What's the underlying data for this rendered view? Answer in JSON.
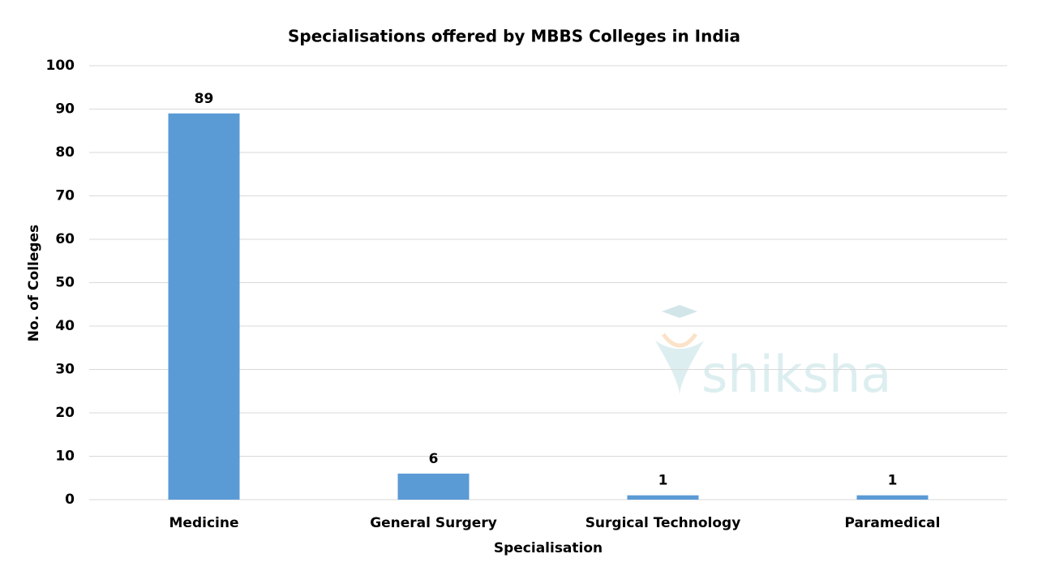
{
  "chart_data": {
    "type": "bar",
    "title": "Specialisations offered by MBBS Colleges in India",
    "x_label": "Specialisation",
    "y_label": "No. of Colleges",
    "categories": [
      "Medicine",
      "General Surgery",
      "Surgical Technology",
      "Paramedical"
    ],
    "values": [
      89,
      6,
      1,
      1
    ],
    "color": "#5b9bd5",
    "ylim": [
      0,
      100
    ],
    "yticks": [
      0,
      10,
      20,
      30,
      40,
      50,
      60,
      70,
      80,
      90,
      100
    ],
    "grid": true,
    "watermark": "shiksha"
  }
}
